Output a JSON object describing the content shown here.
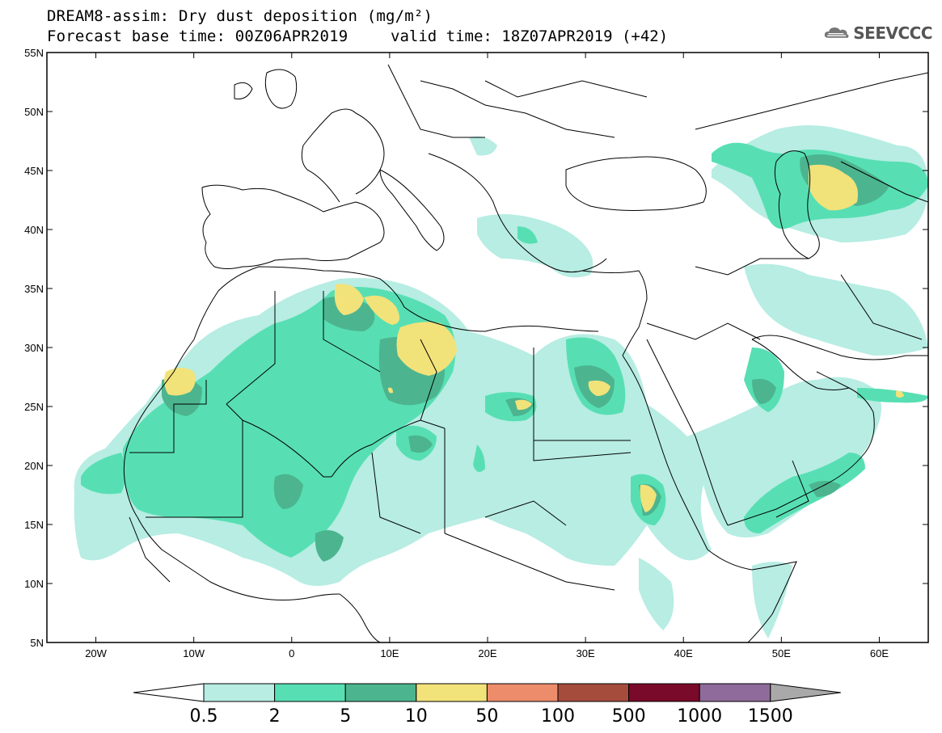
{
  "title": {
    "line1": "DREAM8-assim: Dry dust deposition (mg/m²)",
    "line2": "Forecast base time: 00Z06APR2019",
    "valid": "valid time: 18Z07APR2019 (+42)"
  },
  "logo": {
    "text": "SEEVCCC",
    "icon": "cloud-icon"
  },
  "map": {
    "projection": "lat-lon",
    "lon_range": [
      -25,
      65
    ],
    "lat_range": [
      5,
      55
    ],
    "lat_ticks": [
      {
        "value": 55,
        "label": "55N"
      },
      {
        "value": 50,
        "label": "50N"
      },
      {
        "value": 45,
        "label": "45N"
      },
      {
        "value": 40,
        "label": "40N"
      },
      {
        "value": 35,
        "label": "35N"
      },
      {
        "value": 30,
        "label": "30N"
      },
      {
        "value": 25,
        "label": "25N"
      },
      {
        "value": 20,
        "label": "20N"
      },
      {
        "value": 15,
        "label": "15N"
      },
      {
        "value": 10,
        "label": "10N"
      },
      {
        "value": 5,
        "label": "5N"
      }
    ],
    "lon_ticks": [
      {
        "value": -20,
        "label": "20W"
      },
      {
        "value": -10,
        "label": "10W"
      },
      {
        "value": 0,
        "label": "0"
      },
      {
        "value": 10,
        "label": "10E"
      },
      {
        "value": 20,
        "label": "20E"
      },
      {
        "value": 30,
        "label": "30E"
      },
      {
        "value": 40,
        "label": "40E"
      },
      {
        "value": 50,
        "label": "50E"
      },
      {
        "value": 60,
        "label": "60E"
      }
    ]
  },
  "colorbar": {
    "labels": [
      "0.5",
      "2",
      "5",
      "10",
      "50",
      "100",
      "500",
      "1000",
      "1500"
    ],
    "colors": [
      "#b7ede3",
      "#57dfb3",
      "#4cb58f",
      "#f2e27a",
      "#ec8c6a",
      "#a64c3d",
      "#7a0a2a",
      "#8e6b9a"
    ],
    "under_color": "#ffffff",
    "over_color": "#a9a9a9"
  }
}
